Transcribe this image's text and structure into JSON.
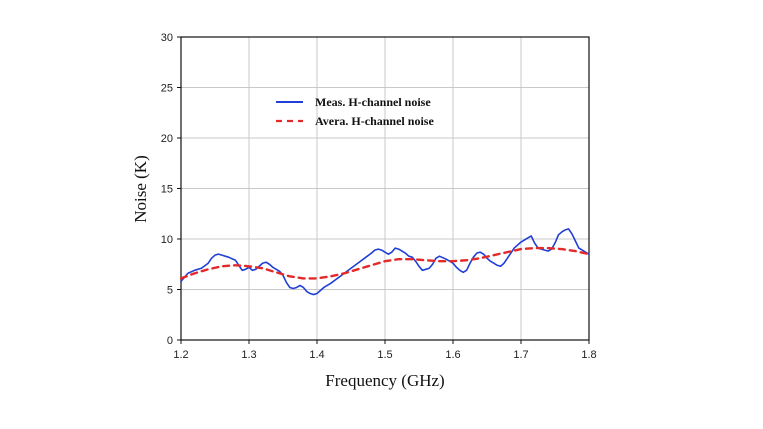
{
  "chart_data": {
    "type": "line",
    "title": "",
    "xlabel": "Frequency (GHz)",
    "ylabel": "Noise (K)",
    "xlim": [
      1.2,
      1.8
    ],
    "ylim": [
      0,
      30
    ],
    "xticks": [
      "1.2",
      "1.3",
      "1.4",
      "1.5",
      "1.6",
      "1.7",
      "1.8"
    ],
    "yticks": [
      "0",
      "5",
      "10",
      "15",
      "20",
      "25",
      "30"
    ],
    "grid": true,
    "legend_position": "upper-left inside plot",
    "series": [
      {
        "name": "Meas.  H-channel noise",
        "color": "#1f3fd6",
        "style": "solid",
        "x": [
          1.2,
          1.205,
          1.21,
          1.22,
          1.23,
          1.24,
          1.245,
          1.25,
          1.255,
          1.26,
          1.27,
          1.28,
          1.285,
          1.29,
          1.295,
          1.3,
          1.305,
          1.31,
          1.315,
          1.32,
          1.325,
          1.33,
          1.335,
          1.34,
          1.345,
          1.35,
          1.355,
          1.36,
          1.365,
          1.37,
          1.375,
          1.38,
          1.385,
          1.39,
          1.395,
          1.4,
          1.405,
          1.41,
          1.42,
          1.43,
          1.44,
          1.45,
          1.46,
          1.47,
          1.48,
          1.485,
          1.49,
          1.495,
          1.5,
          1.505,
          1.51,
          1.515,
          1.52,
          1.525,
          1.53,
          1.535,
          1.54,
          1.545,
          1.55,
          1.555,
          1.56,
          1.565,
          1.57,
          1.575,
          1.58,
          1.59,
          1.6,
          1.605,
          1.61,
          1.615,
          1.62,
          1.625,
          1.63,
          1.635,
          1.64,
          1.645,
          1.65,
          1.655,
          1.66,
          1.665,
          1.67,
          1.675,
          1.68,
          1.685,
          1.69,
          1.695,
          1.7,
          1.705,
          1.71,
          1.715,
          1.72,
          1.725,
          1.73,
          1.735,
          1.74,
          1.745,
          1.75,
          1.755,
          1.76,
          1.765,
          1.77,
          1.775,
          1.78,
          1.785,
          1.79,
          1.795,
          1.8
        ],
        "y": [
          5.8,
          6.2,
          6.6,
          6.9,
          7.1,
          7.6,
          8.1,
          8.4,
          8.5,
          8.4,
          8.2,
          7.9,
          7.4,
          6.9,
          7.0,
          7.2,
          6.9,
          7.0,
          7.3,
          7.6,
          7.7,
          7.5,
          7.2,
          7.0,
          6.8,
          6.4,
          5.7,
          5.2,
          5.1,
          5.2,
          5.4,
          5.2,
          4.8,
          4.6,
          4.5,
          4.6,
          4.9,
          5.2,
          5.6,
          6.1,
          6.6,
          7.1,
          7.6,
          8.1,
          8.6,
          8.9,
          9.0,
          8.9,
          8.7,
          8.5,
          8.7,
          9.1,
          9.0,
          8.8,
          8.6,
          8.3,
          8.2,
          7.8,
          7.3,
          6.9,
          7.0,
          7.1,
          7.5,
          8.1,
          8.3,
          8.0,
          7.6,
          7.2,
          6.9,
          6.7,
          6.9,
          7.6,
          8.2,
          8.6,
          8.7,
          8.5,
          8.1,
          7.8,
          7.6,
          7.4,
          7.3,
          7.6,
          8.1,
          8.6,
          9.1,
          9.4,
          9.7,
          9.9,
          10.1,
          10.3,
          9.6,
          9.1,
          9.0,
          8.9,
          8.8,
          9.0,
          9.6,
          10.4,
          10.7,
          10.9,
          11.0,
          10.5,
          9.8,
          9.1,
          8.9,
          8.7,
          8.5
        ]
      },
      {
        "name": "Avera. H-channel noise",
        "color": "#e32a2a",
        "style": "dashed",
        "x": [
          1.2,
          1.22,
          1.24,
          1.26,
          1.28,
          1.3,
          1.32,
          1.34,
          1.36,
          1.38,
          1.4,
          1.42,
          1.44,
          1.46,
          1.48,
          1.5,
          1.52,
          1.54,
          1.56,
          1.58,
          1.6,
          1.62,
          1.64,
          1.66,
          1.68,
          1.7,
          1.72,
          1.74,
          1.76,
          1.78,
          1.8
        ],
        "y": [
          6.1,
          6.6,
          7.0,
          7.3,
          7.4,
          7.3,
          7.1,
          6.7,
          6.3,
          6.1,
          6.1,
          6.3,
          6.6,
          7.0,
          7.4,
          7.8,
          8.0,
          8.0,
          7.9,
          7.8,
          7.8,
          7.9,
          8.1,
          8.4,
          8.7,
          9.0,
          9.1,
          9.1,
          9.0,
          8.8,
          8.5
        ]
      }
    ]
  }
}
